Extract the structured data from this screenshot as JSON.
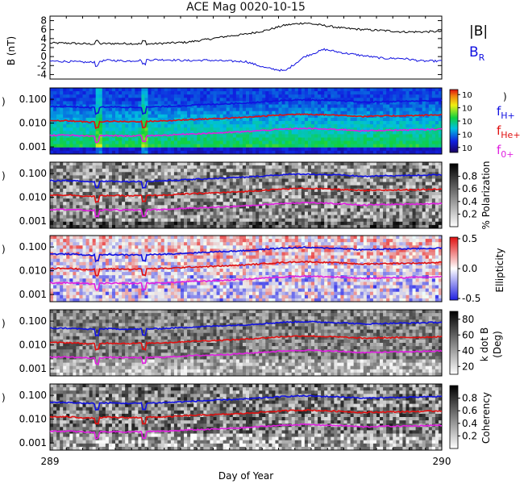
{
  "chart_data": [
    {
      "type": "line",
      "title": "ACE Mag 0020-10-15",
      "ylabel": "B (nT)",
      "ylim": [
        -5,
        9
      ],
      "yticks": [
        "8",
        "6",
        "4",
        "2",
        "0",
        "-2",
        "-4"
      ],
      "series": [
        {
          "name": "|B|",
          "color": "#000000",
          "values": [
            3.0,
            3.0,
            2.8,
            2.9,
            2.9,
            2.8,
            3.0,
            3.2,
            3.8,
            4.5,
            5.0,
            5.8,
            7.0,
            7.5,
            6.9,
            6.3,
            6.0,
            5.8,
            5.5,
            5.5,
            5.6
          ]
        },
        {
          "name": "B",
          "subscript": "R",
          "color": "#1010e0",
          "values": [
            -1.0,
            -1.1,
            -1.3,
            -0.8,
            -1.0,
            -0.7,
            -0.7,
            -0.9,
            -0.8,
            -1.0,
            -1.1,
            -2.5,
            -3.2,
            0.0,
            1.6,
            0.8,
            0.2,
            -0.4,
            -0.4,
            -1.0,
            -1.0
          ]
        }
      ]
    },
    {
      "type": "heatmap",
      "ylabel_fragment": ")",
      "yticks": [
        "0.100",
        "0.010",
        "0.001"
      ],
      "colorbar_ticks": [
        "10",
        "10",
        "10",
        "10",
        "10"
      ],
      "colorbar_label_fragment": ")",
      "legend": [
        {
          "label": "f",
          "subscript": "H+",
          "color": "#1010e0"
        },
        {
          "label": "f",
          "subscript": "He+",
          "color": "#e01010"
        },
        {
          "label": "f",
          "subscript": "0+",
          "color": "#e020e0"
        }
      ]
    },
    {
      "type": "heatmap",
      "ylabel_fragment": ")",
      "yticks": [
        "0.100",
        "0.010",
        "0.001"
      ],
      "colorbar_ticks": [
        "0.8",
        "0.6",
        "0.4",
        "0.2"
      ],
      "colorbar_label": "% Polarization"
    },
    {
      "type": "heatmap",
      "ylabel_fragment": ")",
      "yticks": [
        "0.100",
        "0.010",
        "0.001"
      ],
      "colorbar_ticks": [
        "0.5",
        "0.0",
        "-0.5"
      ],
      "colorbar_label": "Ellipticity"
    },
    {
      "type": "heatmap",
      "ylabel_fragment": ")",
      "yticks": [
        "0.100",
        "0.010",
        "0.001"
      ],
      "colorbar_ticks": [
        "80",
        "60",
        "40",
        "20"
      ],
      "colorbar_label": "k dot B",
      "colorbar_label2": "(Deg)"
    },
    {
      "type": "heatmap",
      "ylabel_fragment": ")",
      "yticks": [
        "0.100",
        "0.010",
        "0.001"
      ],
      "colorbar_ticks": [
        "0.8",
        "0.6",
        "0.4",
        "0.2"
      ],
      "colorbar_label": "Coherency"
    }
  ],
  "xaxis": {
    "label": "Day of Year",
    "ticks": [
      "289",
      "290"
    ],
    "range": [
      289,
      290
    ]
  },
  "frequency_lines": {
    "H+": [
      0.05,
      0.05,
      0.045,
      0.048,
      0.046,
      0.047,
      0.05,
      0.055,
      0.06,
      0.065,
      0.07,
      0.08,
      0.09,
      0.095,
      0.09,
      0.085,
      0.075,
      0.08,
      0.082,
      0.085,
      0.09
    ],
    "He+": [
      0.0125,
      0.0125,
      0.011,
      0.012,
      0.0115,
      0.012,
      0.0125,
      0.014,
      0.015,
      0.016,
      0.0175,
      0.02,
      0.0225,
      0.024,
      0.0225,
      0.021,
      0.019,
      0.02,
      0.0205,
      0.021,
      0.0225
    ],
    "O+": [
      0.0031,
      0.0031,
      0.0028,
      0.003,
      0.0029,
      0.003,
      0.0031,
      0.0035,
      0.0037,
      0.004,
      0.0044,
      0.005,
      0.0056,
      0.006,
      0.0056,
      0.0053,
      0.0047,
      0.005,
      0.0051,
      0.0053,
      0.0056
    ]
  }
}
